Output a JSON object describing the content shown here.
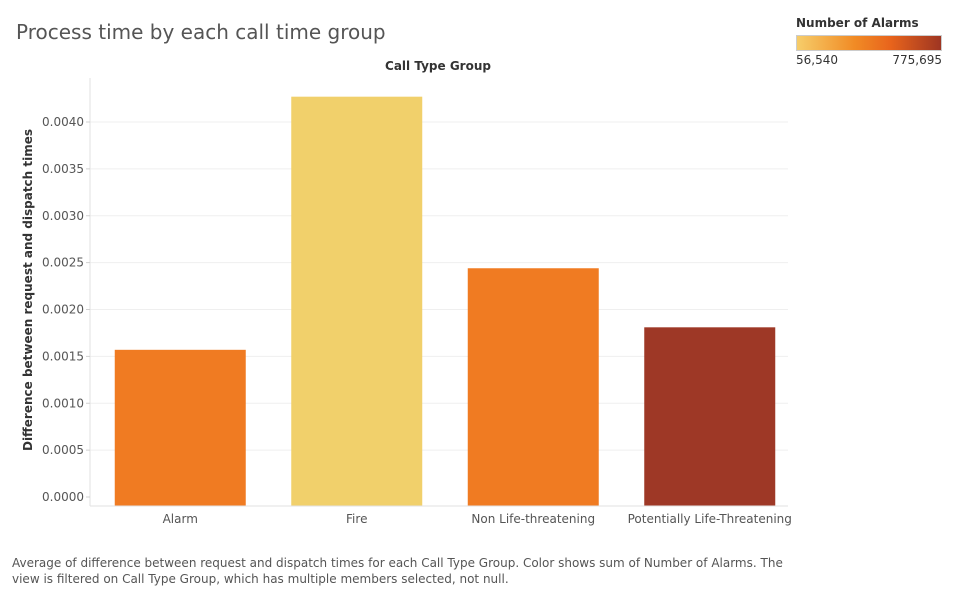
{
  "page_title": "Process time by each call time group",
  "legend": {
    "title": "Number of Alarms",
    "min_label": "56,540",
    "max_label": "775,695",
    "min_value": 56540,
    "max_value": 775695,
    "colors": [
      "#f6cd6a",
      "#f18b25",
      "#e8641c",
      "#9e3522"
    ]
  },
  "footer": "Average of difference between request and dispatch times for each Call Type Group.  Color shows sum of Number of Alarms. The view is filtered on Call Type Group, which has multiple members selected, not null.",
  "chart_data": {
    "type": "bar",
    "title": "Process time by each call time group",
    "top_axis_label": "Call Type Group",
    "xlabel": "",
    "ylabel": "Difference between request and dispatch times",
    "categories": [
      "Alarm",
      "Fire",
      "Non Life-threatening",
      "Potentially Life-Threatening"
    ],
    "values": [
      0.00157,
      0.00427,
      0.00244,
      0.00181
    ],
    "colors": [
      "#f07b22",
      "#f1d06b",
      "#f07b22",
      "#9e3826"
    ],
    "yticks": [
      0,
      0.0005,
      0.001,
      0.0015,
      0.002,
      0.0025,
      0.003,
      0.0035,
      0.004
    ],
    "ytick_labels": [
      "0.0000",
      "0.0005",
      "0.0010",
      "0.0015",
      "0.0020",
      "0.0025",
      "0.0030",
      "0.0035",
      "0.0040"
    ],
    "ylim": [
      0,
      0.0044
    ],
    "grid": true,
    "legend_position": "top-right"
  }
}
